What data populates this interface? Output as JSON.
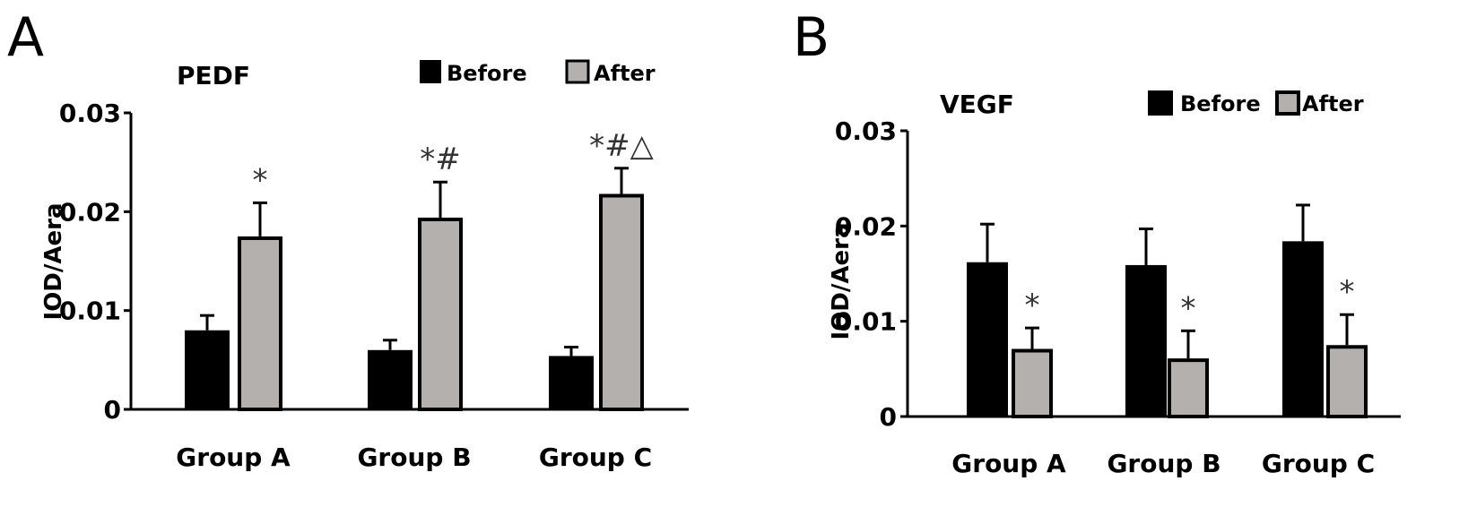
{
  "panels": [
    {
      "letter": "A",
      "title": "PEDF",
      "ylabel": "IOD/Aera",
      "legend": {
        "before": "Before",
        "after": "After"
      }
    },
    {
      "letter": "B",
      "title": "VEGF",
      "ylabel": "IOD/Aera",
      "legend": {
        "before": "Before",
        "after": "After"
      }
    }
  ],
  "colors": {
    "before": "#000000",
    "after": "#b3b0ae",
    "outline": "#000000"
  },
  "chart_data": [
    {
      "type": "bar",
      "title": "PEDF",
      "ylabel": "IOD/Aera",
      "xlabel": "",
      "categories": [
        "Group A",
        "Group B",
        "Group C"
      ],
      "ylim": [
        0,
        0.03
      ],
      "yticks": [
        0,
        0.01,
        0.02,
        0.03
      ],
      "ytick_labels": [
        "0",
        "0.01",
        "0.02",
        "0.03"
      ],
      "legend_position": "top-right",
      "series": [
        {
          "name": "Before",
          "values": [
            0.008,
            0.006,
            0.0054
          ],
          "errors": [
            0.0015,
            0.001,
            0.0009
          ]
        },
        {
          "name": "After",
          "values": [
            0.0175,
            0.0194,
            0.0218
          ],
          "errors": [
            0.0034,
            0.0036,
            0.0026
          ]
        }
      ],
      "annotations": [
        "*",
        "*#",
        "*#△"
      ]
    },
    {
      "type": "bar",
      "title": "VEGF",
      "ylabel": "IOD/Aera",
      "xlabel": "",
      "categories": [
        "Group A",
        "Group B",
        "Group C"
      ],
      "ylim": [
        0,
        0.03
      ],
      "yticks": [
        0,
        0.01,
        0.02,
        0.03
      ],
      "ytick_labels": [
        "0",
        "0.01",
        "0.02",
        "0.03"
      ],
      "legend_position": "top-right",
      "series": [
        {
          "name": "Before",
          "values": [
            0.0162,
            0.0159,
            0.0184
          ],
          "errors": [
            0.004,
            0.0038,
            0.0038
          ]
        },
        {
          "name": "After",
          "values": [
            0.0071,
            0.0061,
            0.0075
          ],
          "errors": [
            0.0022,
            0.0029,
            0.0032
          ]
        }
      ],
      "annotations": [
        "*",
        "*",
        "*"
      ]
    }
  ]
}
